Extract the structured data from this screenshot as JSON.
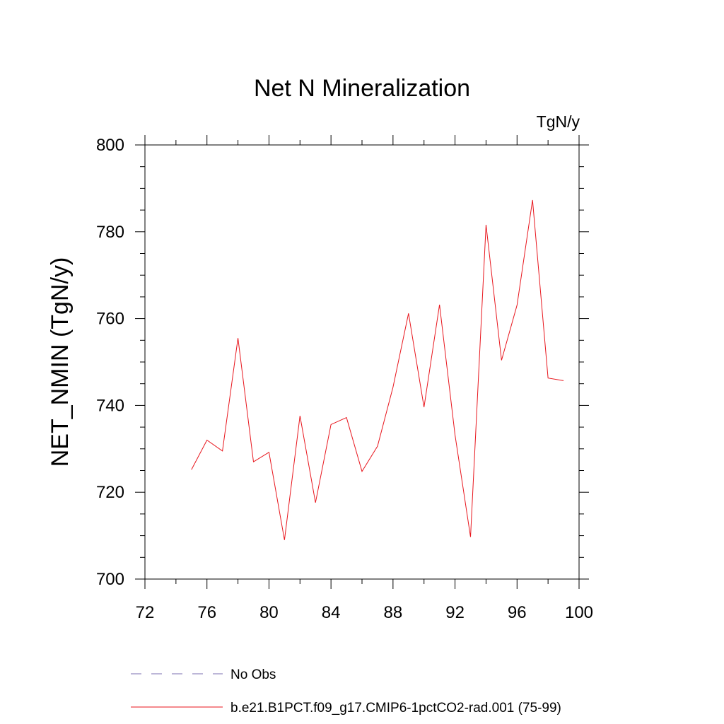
{
  "chart_data": {
    "type": "line",
    "title": "Net N Mineralization",
    "units_label": "TgN/y",
    "ylabel": "NET_NMIN  (TgN/y)",
    "xlabel": "",
    "xlim": [
      72,
      100
    ],
    "ylim": [
      700,
      800
    ],
    "x_ticks": [
      72,
      76,
      80,
      84,
      88,
      92,
      96,
      100
    ],
    "y_ticks": [
      700,
      720,
      740,
      760,
      780,
      800
    ],
    "grid": false,
    "legend_position": "bottom",
    "series": [
      {
        "name": "No Obs",
        "color": "#7b6fb0",
        "style": "dashed",
        "x": [],
        "values": []
      },
      {
        "name": "b.e21.B1PCT.f09_g17.CMIP6-1pctCO2-rad.001 (75-99)",
        "color": "#e8161d",
        "style": "solid",
        "x": [
          75,
          76,
          77,
          78,
          79,
          80,
          81,
          82,
          83,
          84,
          85,
          86,
          87,
          88,
          89,
          90,
          91,
          92,
          93,
          94,
          95,
          96,
          97,
          98,
          99
        ],
        "values": [
          725.2,
          732.0,
          729.5,
          755.5,
          727.0,
          729.2,
          709.0,
          737.6,
          717.6,
          735.6,
          737.2,
          724.8,
          730.6,
          744.2,
          761.2,
          739.6,
          763.2,
          733.2,
          709.7,
          781.6,
          750.4,
          763.1,
          787.3,
          746.3,
          745.7
        ]
      }
    ]
  }
}
